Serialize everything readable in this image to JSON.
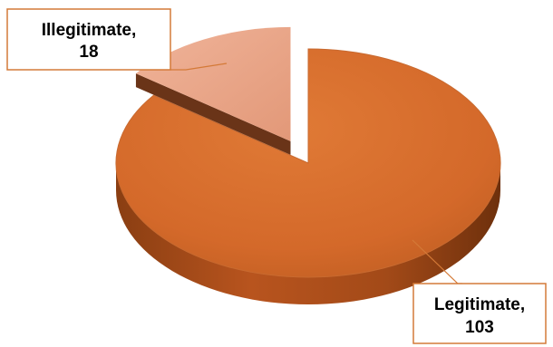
{
  "chart_data": {
    "type": "pie",
    "title": "",
    "slices": [
      {
        "name": "Illegitimate",
        "value": 18,
        "color": "#e8a488",
        "label": "Illegitimate,",
        "value_label": "18"
      },
      {
        "name": "Legitimate",
        "value": 103,
        "color": "#d4692a",
        "label": "Legitimate,",
        "value_label": "103"
      }
    ],
    "legend": "none",
    "style": "3d-exploded"
  }
}
